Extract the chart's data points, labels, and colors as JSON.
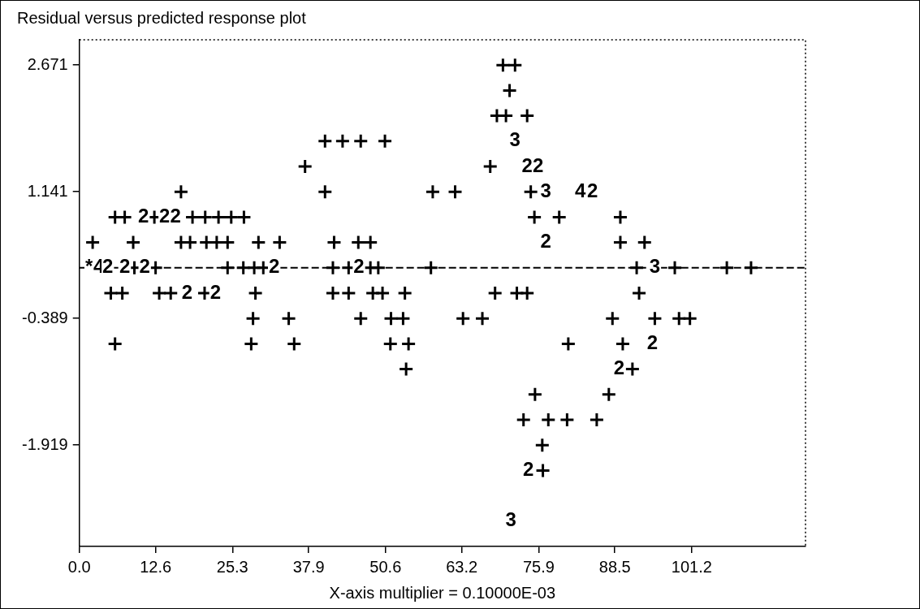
{
  "chart_data": {
    "type": "scatter",
    "title": "Residual versus predicted response plot",
    "xlabel": "X-axis multiplier = 0.10000E-03",
    "xlim": [
      0,
      120
    ],
    "ylim": [
      -3.143,
      2.977
    ],
    "xticks": [
      {
        "value": 0,
        "label": "0.0"
      },
      12.6,
      25.3,
      37.9,
      50.6,
      63.2,
      75.9,
      88.5,
      101.2
    ],
    "yticks": [
      2.671,
      1.141,
      -0.389,
      -1.919
    ],
    "grid": false,
    "legend": false,
    "marker": "cross",
    "ref_lines": [
      {
        "axis": "y",
        "value": 0.223,
        "line_style": "dashed",
        "color": "#000000"
      }
    ],
    "annotations": [
      {
        "text": "3",
        "x": 72.0,
        "y": 1.753
      },
      {
        "text": "2",
        "x": 74.0,
        "y": 1.447
      },
      {
        "text": "2",
        "x": 75.8,
        "y": 1.447
      },
      {
        "text": "3",
        "x": 77.1,
        "y": 1.141
      },
      {
        "text": "4",
        "x": 82.8,
        "y": 1.141
      },
      {
        "text": "2",
        "x": 84.8,
        "y": 1.141
      },
      {
        "text": "2",
        "x": 10.6,
        "y": 0.835
      },
      {
        "text": "2",
        "x": 14.1,
        "y": 0.835
      },
      {
        "text": "2",
        "x": 15.9,
        "y": 0.835
      },
      {
        "text": "2",
        "x": 77.1,
        "y": 0.529
      },
      {
        "text": "*",
        "x": 1.6,
        "y": 0.223
      },
      {
        "text": "4",
        "x": 3.2,
        "y": 0.223
      },
      {
        "text": "2",
        "x": 4.7,
        "y": 0.223
      },
      {
        "text": "2",
        "x": 7.5,
        "y": 0.223
      },
      {
        "text": "2",
        "x": 10.8,
        "y": 0.223
      },
      {
        "text": "2",
        "x": 32.2,
        "y": 0.223
      },
      {
        "text": "2",
        "x": 46.2,
        "y": 0.223
      },
      {
        "text": "3",
        "x": 95.1,
        "y": 0.223
      },
      {
        "text": "2",
        "x": 17.8,
        "y": -0.083
      },
      {
        "text": "2",
        "x": 22.5,
        "y": -0.083
      },
      {
        "text": "2",
        "x": 94.7,
        "y": -0.695
      },
      {
        "text": "2",
        "x": 89.2,
        "y": -1.001
      },
      {
        "text": "2",
        "x": 74.2,
        "y": -2.225
      },
      {
        "text": "3",
        "x": 71.3,
        "y": -2.837
      }
    ],
    "series": [
      {
        "color": "#000000",
        "x": [
          70.0,
          72.0,
          71.1,
          69.0,
          70.5,
          74.0,
          40.6,
          43.5,
          46.5,
          50.5,
          37.3,
          67.9,
          16.8,
          40.6,
          58.4,
          62.1,
          74.6,
          5.9,
          7.5,
          12.4,
          18.7,
          20.8,
          23.0,
          25.1,
          27.2,
          75.2,
          79.3,
          89.4,
          2.2,
          8.9,
          16.8,
          18.3,
          21.0,
          22.7,
          24.5,
          29.6,
          33.1,
          42.1,
          46.1,
          48.1,
          89.4,
          93.4,
          9.1,
          12.6,
          24.5,
          27.1,
          28.9,
          30.4,
          41.9,
          44.5,
          48.1,
          49.4,
          58.1,
          92.1,
          98.4,
          107.0,
          111.0,
          5.2,
          7.1,
          13.2,
          15.1,
          20.7,
          29.1,
          41.9,
          44.5,
          48.5,
          50.1,
          53.8,
          68.7,
          72.3,
          74.0,
          92.5,
          28.7,
          34.6,
          46.5,
          51.5,
          53.5,
          63.4,
          66.6,
          88.1,
          95.1,
          99.1,
          100.9,
          5.9,
          28.4,
          35.5,
          51.4,
          54.4,
          80.8,
          89.8,
          54.0,
          91.4,
          75.3,
          87.5,
          73.4,
          77.5,
          80.6,
          85.5,
          76.5,
          76.6
        ],
        "values": [
          2.671,
          2.671,
          2.365,
          2.059,
          2.059,
          2.059,
          1.753,
          1.753,
          1.753,
          1.753,
          1.447,
          1.447,
          1.141,
          1.141,
          1.141,
          1.141,
          1.141,
          0.835,
          0.835,
          0.835,
          0.835,
          0.835,
          0.835,
          0.835,
          0.835,
          0.835,
          0.835,
          0.835,
          0.529,
          0.529,
          0.529,
          0.529,
          0.529,
          0.529,
          0.529,
          0.529,
          0.529,
          0.529,
          0.529,
          0.529,
          0.529,
          0.529,
          0.223,
          0.223,
          0.223,
          0.223,
          0.223,
          0.223,
          0.223,
          0.223,
          0.223,
          0.223,
          0.223,
          0.223,
          0.223,
          0.223,
          0.223,
          -0.083,
          -0.083,
          -0.083,
          -0.083,
          -0.083,
          -0.083,
          -0.083,
          -0.083,
          -0.083,
          -0.083,
          -0.083,
          -0.083,
          -0.083,
          -0.083,
          -0.083,
          -0.389,
          -0.389,
          -0.389,
          -0.389,
          -0.389,
          -0.389,
          -0.389,
          -0.389,
          -0.389,
          -0.389,
          -0.389,
          -0.695,
          -0.695,
          -0.695,
          -0.695,
          -0.695,
          -0.695,
          -0.695,
          -1.001,
          -1.001,
          -1.307,
          -1.307,
          -1.613,
          -1.613,
          -1.613,
          -1.613,
          -1.919,
          -2.225
        ]
      }
    ]
  }
}
